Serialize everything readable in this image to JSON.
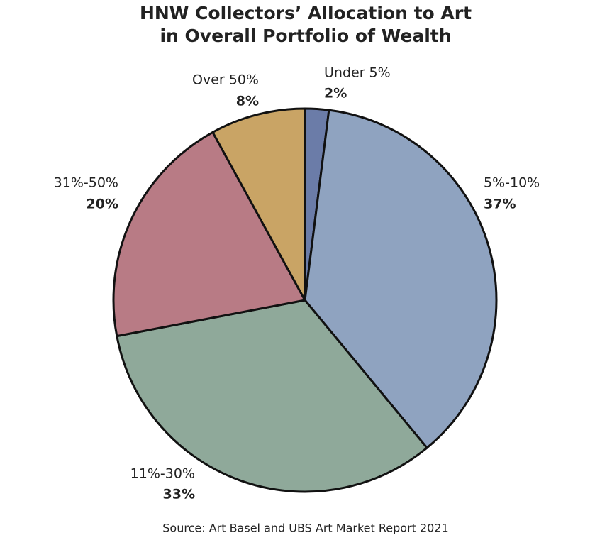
{
  "chart_data": {
    "type": "pie",
    "title": [
      "HNW Collectors’ Allocation to Art",
      "in Overall Portfolio of Wealth"
    ],
    "categories": [
      "Under 5%",
      "5%-10%",
      "11%-30%",
      "31%-50%",
      "Over 50%"
    ],
    "values": [
      2,
      37,
      33,
      20,
      8
    ],
    "value_labels": [
      "2%",
      "37%",
      "33%",
      "20%",
      "8%"
    ],
    "colors": [
      "#6b7ca8",
      "#8fa3c0",
      "#8fa99a",
      "#b87b85",
      "#c9a465"
    ],
    "source": "Source: Art Basel and UBS Art Market Report 2021"
  }
}
